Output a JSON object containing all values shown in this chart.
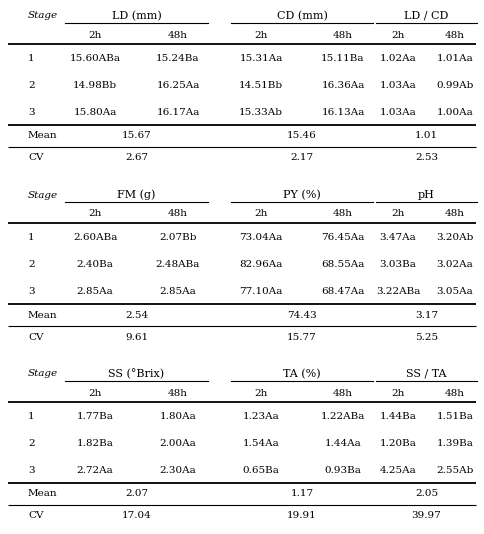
{
  "section1": {
    "headers": [
      "LD (mm)",
      "CD (mm)",
      "LD / CD"
    ],
    "subheaders": [
      "2h",
      "48h",
      "2h",
      "48h",
      "2h",
      "48h"
    ],
    "rows": [
      [
        "1",
        "15.60ABa",
        "15.24Ba",
        "15.31Aa",
        "15.11Ba",
        "1.02Aa",
        "1.01Aa"
      ],
      [
        "2",
        "14.98Bb",
        "16.25Aa",
        "14.51Bb",
        "16.36Aa",
        "1.03Aa",
        "0.99Ab"
      ],
      [
        "3",
        "15.80Aa",
        "16.17Aa",
        "15.33Ab",
        "16.13Aa",
        "1.03Aa",
        "1.00Aa"
      ]
    ],
    "mean_vals": [
      "15.67",
      "15.46",
      "1.01"
    ],
    "cv_vals": [
      "2.67",
      "2.17",
      "2.53"
    ]
  },
  "section2": {
    "headers": [
      "FM (g)",
      "PY (%)",
      "pH"
    ],
    "subheaders": [
      "2h",
      "48h",
      "2h",
      "48h",
      "2h",
      "48h"
    ],
    "rows": [
      [
        "1",
        "2.60ABa",
        "2.07Bb",
        "73.04Aa",
        "76.45Aa",
        "3.47Aa",
        "3.20Ab"
      ],
      [
        "2",
        "2.40Ba",
        "2.48ABa",
        "82.96Aa",
        "68.55Aa",
        "3.03Ba",
        "3.02Aa"
      ],
      [
        "3",
        "2.85Aa",
        "2.85Aa",
        "77.10Aa",
        "68.47Aa",
        "3.22ABa",
        "3.05Aa"
      ]
    ],
    "mean_vals": [
      "2.54",
      "74.43",
      "3.17"
    ],
    "cv_vals": [
      "9.61",
      "15.77",
      "5.25"
    ]
  },
  "section3": {
    "headers": [
      "SS (°Brix)",
      "TA (%)",
      "SS / TA"
    ],
    "subheaders": [
      "2h",
      "48h",
      "2h",
      "48h",
      "2h",
      "48h"
    ],
    "rows": [
      [
        "1",
        "1.77Ba",
        "1.80Aa",
        "1.23Aa",
        "1.22ABa",
        "1.44Ba",
        "1.51Ba"
      ],
      [
        "2",
        "1.82Ba",
        "2.00Aa",
        "1.54Aa",
        "1.44Aa",
        "1.20Ba",
        "1.39Ba"
      ],
      [
        "3",
        "2.72Aa",
        "2.30Aa",
        "0.65Ba",
        "0.93Ba",
        "4.25Aa",
        "2.55Ab"
      ]
    ],
    "mean_vals": [
      "2.07",
      "1.17",
      "2.05"
    ],
    "cv_vals": [
      "17.04",
      "19.91",
      "39.97"
    ]
  },
  "bg_color": "#ffffff",
  "text_color": "#000000",
  "line_color": "#000000",
  "font_size": 7.5,
  "header_font_size": 8.0
}
